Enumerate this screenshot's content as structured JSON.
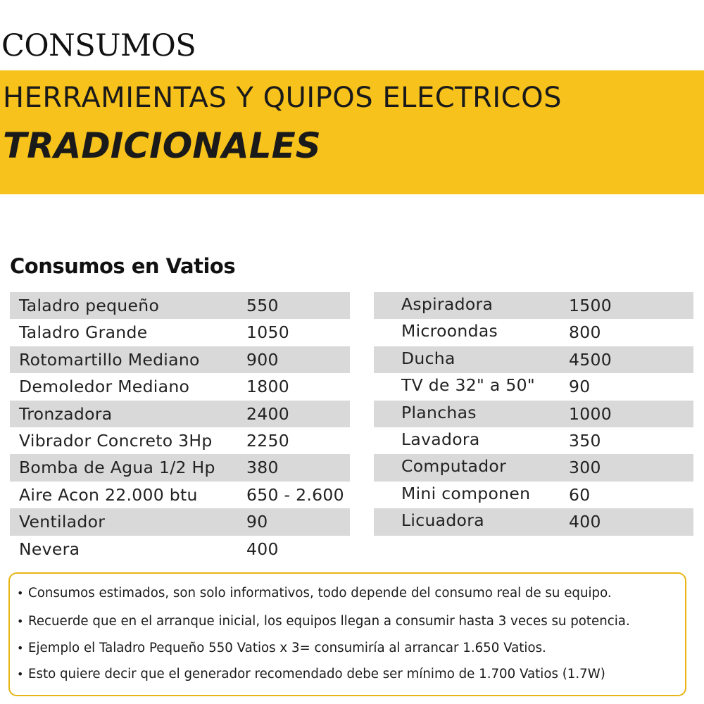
{
  "header": {
    "title": "CONSUMOS",
    "subtitle": "HERRAMIENTAS Y QUIPOS ELECTRICOS",
    "subtitle_emphasis": "TRADICIONALES",
    "banner_color": "#f7c21b"
  },
  "section": {
    "heading": "Consumos en Vatios"
  },
  "table_left": {
    "rows": [
      {
        "name": "Taladro pequeño",
        "value": "550"
      },
      {
        "name": "Taladro Grande",
        "value": "1050"
      },
      {
        "name": "Rotomartillo Mediano",
        "value": "900"
      },
      {
        "name": "Demoledor Mediano",
        "value": "1800"
      },
      {
        "name": "Tronzadora",
        "value": "2400"
      },
      {
        "name": "Vibrador Concreto 3Hp",
        "value": "2250"
      },
      {
        "name": "Bomba de Agua 1/2 Hp",
        "value": "380"
      },
      {
        "name": "Aire Acon 22.000 btu",
        "value": "650 - 2.600"
      },
      {
        "name": "Ventilador",
        "value": "90"
      },
      {
        "name": "Nevera",
        "value": "400"
      }
    ]
  },
  "table_right": {
    "rows": [
      {
        "name": "Aspiradora",
        "value": "1500"
      },
      {
        "name": "Microondas",
        "value": "800"
      },
      {
        "name": "Ducha",
        "value": "4500"
      },
      {
        "name": "TV de 32\" a 50\"",
        "value": "90"
      },
      {
        "name": "Planchas",
        "value": "1000"
      },
      {
        "name": "Lavadora",
        "value": "350"
      },
      {
        "name": "Computador",
        "value": "300"
      },
      {
        "name": "Mini componen",
        "value": "60"
      },
      {
        "name": "Licuadora",
        "value": "400"
      }
    ]
  },
  "notes": {
    "bullet_icon": "bullet-dot-icon",
    "border_color": "#e8b516",
    "items": [
      "Consumos estimados, son solo informativos, todo depende del consumo real de su equipo.",
      "Recuerde que en el arranque inicial, los equipos llegan a consumir hasta 3 veces su potencia.",
      "Ejemplo el Taladro Pequeño 550 Vatios x 3= consumiría al arrancar 1.650 Vatios.",
      "Esto quiere decir que el generador recomendado debe ser mínimo de 1.700 Vatios (1.7W)"
    ]
  }
}
